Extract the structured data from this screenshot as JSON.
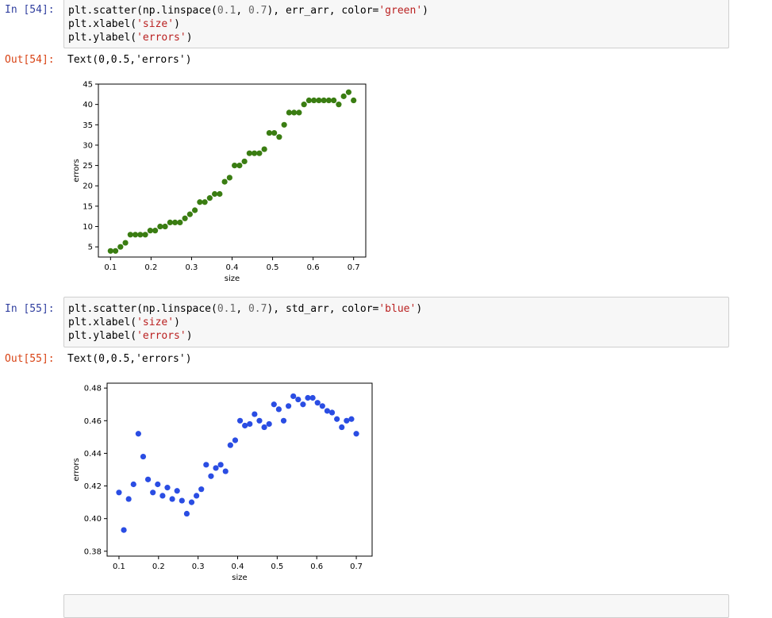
{
  "cells": [
    {
      "in_prompt": "In [54]:",
      "code": [
        {
          "parts": [
            {
              "t": "plt.scatter(np.linspace(",
              "c": "plain"
            },
            {
              "t": "0.1",
              "c": "num"
            },
            {
              "t": ", ",
              "c": "plain"
            },
            {
              "t": "0.7",
              "c": "num"
            },
            {
              "t": "), err_arr, color=",
              "c": "plain"
            },
            {
              "t": "'green'",
              "c": "str"
            },
            {
              "t": ")",
              "c": "plain"
            }
          ]
        },
        {
          "parts": [
            {
              "t": "plt.xlabel(",
              "c": "plain"
            },
            {
              "t": "'size'",
              "c": "str"
            },
            {
              "t": ")",
              "c": "plain"
            }
          ]
        },
        {
          "parts": [
            {
              "t": "plt.ylabel(",
              "c": "plain"
            },
            {
              "t": "'errors'",
              "c": "str"
            },
            {
              "t": ")",
              "c": "plain"
            }
          ]
        }
      ],
      "out_prompt": "Out[54]:",
      "out_text": "Text(0,0.5,'errors')"
    },
    {
      "in_prompt": "In [55]:",
      "code": [
        {
          "parts": [
            {
              "t": "plt.scatter(np.linspace(",
              "c": "plain"
            },
            {
              "t": "0.1",
              "c": "num"
            },
            {
              "t": ", ",
              "c": "plain"
            },
            {
              "t": "0.7",
              "c": "num"
            },
            {
              "t": "), std_arr, color=",
              "c": "plain"
            },
            {
              "t": "'blue'",
              "c": "str"
            },
            {
              "t": ")",
              "c": "plain"
            }
          ]
        },
        {
          "parts": [
            {
              "t": "plt.xlabel(",
              "c": "plain"
            },
            {
              "t": "'size'",
              "c": "str"
            },
            {
              "t": ")",
              "c": "plain"
            }
          ]
        },
        {
          "parts": [
            {
              "t": "plt.ylabel(",
              "c": "plain"
            },
            {
              "t": "'errors'",
              "c": "str"
            },
            {
              "t": ")",
              "c": "plain"
            }
          ]
        }
      ],
      "out_prompt": "Out[55]:",
      "out_text": "Text(0,0.5,'errors')"
    }
  ],
  "chart_data": [
    {
      "type": "scatter",
      "color": "#3a7d12",
      "xlabel": "size",
      "ylabel": "errors",
      "xlim": [
        0.07,
        0.73
      ],
      "ylim": [
        2.5,
        45
      ],
      "xticks": [
        "0.1",
        "0.2",
        "0.3",
        "0.4",
        "0.5",
        "0.6",
        "0.7"
      ],
      "yticks": [
        "5",
        "10",
        "15",
        "20",
        "25",
        "30",
        "35",
        "40",
        "45"
      ],
      "x_start": 0.1,
      "x_end": 0.7,
      "values": [
        4,
        4,
        5,
        6,
        8,
        8,
        8,
        8,
        9,
        9,
        10,
        10,
        11,
        11,
        11,
        12,
        13,
        14,
        16,
        16,
        17,
        18,
        18,
        21,
        22,
        25,
        25,
        26,
        28,
        28,
        28,
        29,
        33,
        33,
        32,
        35,
        38,
        38,
        38,
        40,
        41,
        41,
        41,
        41,
        41,
        41,
        40,
        42,
        43,
        41
      ]
    },
    {
      "type": "scatter",
      "color": "#2a4de3",
      "xlabel": "size",
      "ylabel": "errors",
      "xlim": [
        0.07,
        0.74
      ],
      "ylim": [
        0.377,
        0.483
      ],
      "xticks": [
        "0.1",
        "0.2",
        "0.3",
        "0.4",
        "0.5",
        "0.6",
        "0.7"
      ],
      "yticks": [
        "0.38",
        "0.40",
        "0.42",
        "0.44",
        "0.46",
        "0.48"
      ],
      "x_start": 0.1,
      "x_end": 0.7,
      "values": [
        0.416,
        0.393,
        0.412,
        0.421,
        0.452,
        0.438,
        0.424,
        0.416,
        0.421,
        0.414,
        0.419,
        0.412,
        0.417,
        0.411,
        0.403,
        0.41,
        0.414,
        0.418,
        0.433,
        0.426,
        0.431,
        0.433,
        0.429,
        0.445,
        0.448,
        0.46,
        0.457,
        0.458,
        0.464,
        0.46,
        0.456,
        0.458,
        0.47,
        0.467,
        0.46,
        0.469,
        0.475,
        0.473,
        0.47,
        0.474,
        0.474,
        0.471,
        0.469,
        0.466,
        0.465,
        0.461,
        0.456,
        0.46,
        0.461,
        0.452
      ]
    }
  ]
}
